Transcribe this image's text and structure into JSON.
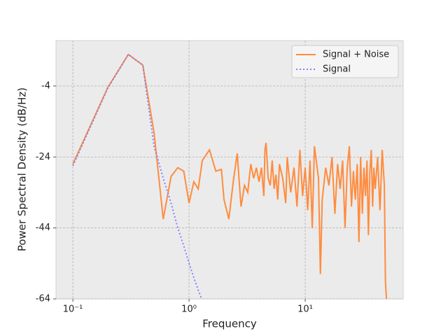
{
  "chart_data": {
    "type": "line",
    "x_label": "Frequency",
    "y_label": "Power Spectral Density (dB/Hz)",
    "log_x": true,
    "grid": true,
    "legend": "upper right",
    "xlim": [
      0.0716,
      69.7
    ],
    "ylim": [
      -64,
      8.8
    ],
    "xticks": [
      {
        "value": 0.1,
        "label": "10⁻¹"
      },
      {
        "value": 1,
        "label": "10⁰"
      },
      {
        "value": 10,
        "label": "10¹"
      }
    ],
    "yticks": [
      -4,
      -24,
      -44,
      -64
    ],
    "series": [
      {
        "name": "Signal + Noise",
        "color": "#ff8c3f",
        "style": "solid",
        "x": [
          0.1,
          0.2,
          0.3,
          0.4,
          0.5,
          0.6,
          0.7,
          0.8,
          0.9,
          1.0,
          1.1,
          1.2,
          1.3,
          1.5,
          1.7,
          1.9,
          2.0,
          2.2,
          2.4,
          2.6,
          2.8,
          3.0,
          3.2,
          3.4,
          3.6,
          3.8,
          4.0,
          4.2,
          4.4,
          4.5,
          4.6,
          4.8,
          5.0,
          5.2,
          5.4,
          5.6,
          5.8,
          6.0,
          6.4,
          6.8,
          7.0,
          7.5,
          8.0,
          8.5,
          9.0,
          9.5,
          10,
          10.5,
          11,
          11.5,
          12,
          13,
          13.5,
          14,
          15,
          16,
          17,
          18,
          19,
          20,
          21,
          22,
          23,
          24,
          25,
          26,
          27,
          28,
          29,
          30,
          31,
          32,
          33,
          34,
          35,
          36,
          37,
          38,
          39,
          40,
          42,
          44,
          46,
          48,
          49,
          50
        ],
        "values": [
          -26,
          -4.4,
          4.9,
          1.9,
          -17.2,
          -41.5,
          -29.5,
          -27,
          -28,
          -37,
          -31,
          -33,
          -25,
          -22,
          -28,
          -27.5,
          -36,
          -41.5,
          -31,
          -23,
          -38,
          -32,
          -34,
          -26,
          -30,
          -27,
          -31,
          -27,
          -35,
          -22,
          -20,
          -30,
          -32,
          -25,
          -33,
          -29,
          -36,
          -26,
          -30,
          -37,
          -24,
          -34,
          -27,
          -38,
          -22,
          -35,
          -27,
          -39,
          -25,
          -44,
          -21,
          -30,
          -57,
          -36,
          -27,
          -32,
          -24,
          -40,
          -26,
          -33,
          -25,
          -44,
          -27,
          -21,
          -38,
          -28,
          -36,
          -26,
          -48,
          -24,
          -40,
          -27,
          -35,
          -25,
          -46,
          -28,
          -22,
          -38,
          -27,
          -33,
          -24,
          -39,
          -22,
          -32,
          -59,
          -64
        ]
      },
      {
        "name": "Signal",
        "color": "#8080ff",
        "style": "dotted",
        "x": [
          0.1,
          0.2,
          0.3,
          0.4,
          0.5,
          0.6,
          0.7,
          0.8,
          0.9,
          1.0,
          1.1,
          1.2,
          1.3
        ],
        "values": [
          -26.5,
          -4.6,
          4.9,
          1.9,
          -21,
          -30,
          -37,
          -44,
          -49,
          -54,
          -58,
          -61.5,
          -64.5
        ]
      }
    ]
  }
}
